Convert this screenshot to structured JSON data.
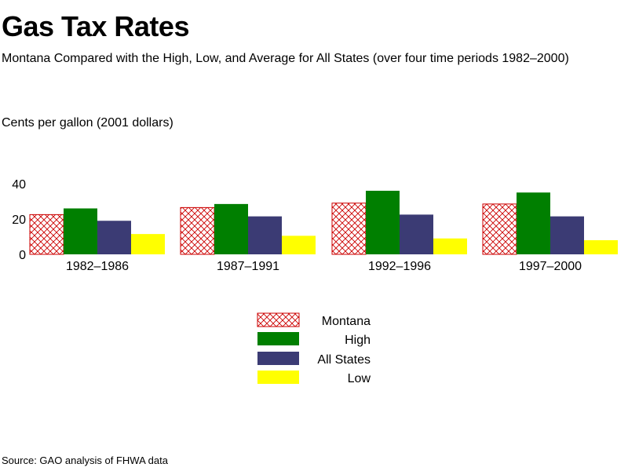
{
  "header": {
    "title": "Gas Tax Rates",
    "subtitle": "Montana Compared with the High, Low, and Average for All States (over four time periods 1982–2000)"
  },
  "footer": {
    "source": "Source: GAO analysis of FHWA data"
  },
  "colors": {
    "montana": "#cc0000",
    "high": "#007f00",
    "all_states": "#3b3b74",
    "low": "#ffff00"
  },
  "chart_data": {
    "type": "bar",
    "title": "Gas Tax Rates",
    "subtitle": "Montana Compared with the High, Low, and Average for All States (over four time periods 1982–2000)",
    "xlabel": "",
    "ylabel": "Cents per gallon (2001 dollars)",
    "ylim": [
      0,
      40
    ],
    "yticks": [
      0,
      20,
      40
    ],
    "grid": false,
    "legend": "bottom-center",
    "categories": [
      "1982–1986",
      "1987–1991",
      "1992–1996",
      "1997–2000"
    ],
    "series": [
      {
        "name": "Montana",
        "color": "#cc0000",
        "pattern": "crosshatch",
        "values": [
          22.5,
          26.5,
          29,
          28.5
        ]
      },
      {
        "name": "High",
        "color": "#007f00",
        "pattern": "solid",
        "values": [
          26,
          28.5,
          36,
          35
        ]
      },
      {
        "name": "All States",
        "color": "#3b3b74",
        "pattern": "solid",
        "values": [
          19,
          21.5,
          22.5,
          21.5
        ]
      },
      {
        "name": "Low",
        "color": "#ffff00",
        "pattern": "solid",
        "values": [
          11.5,
          10.5,
          9,
          8
        ]
      }
    ]
  }
}
